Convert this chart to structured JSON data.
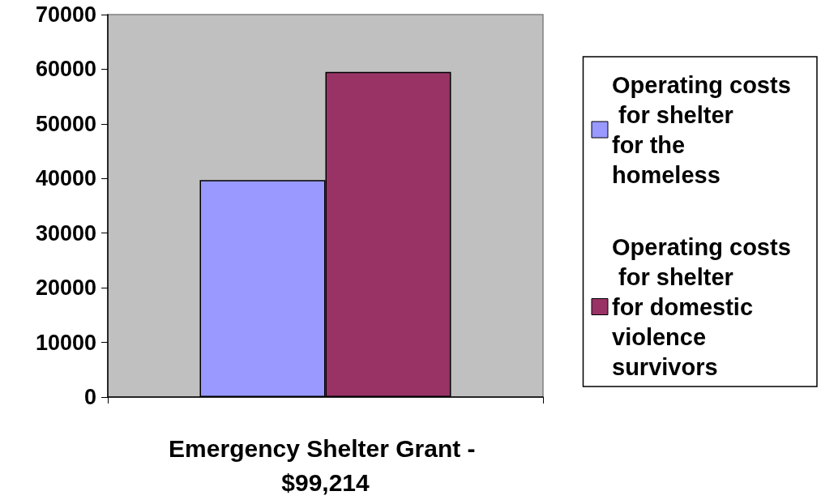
{
  "chart_data": {
    "type": "bar",
    "categories": [
      "Emergency Shelter Grant - $99,214"
    ],
    "series": [
      {
        "name": "Operating costs for shelter for the homeless",
        "color": "#9999ff",
        "values": [
          39700
        ]
      },
      {
        "name": "Operating costs for shelter for domestic violence survivors",
        "color": "#993366",
        "values": [
          59500
        ]
      }
    ],
    "ylim": [
      0,
      70000
    ],
    "yticks": [
      0,
      10000,
      20000,
      30000,
      40000,
      50000,
      60000,
      70000
    ],
    "grid": false,
    "legend": "right"
  }
}
